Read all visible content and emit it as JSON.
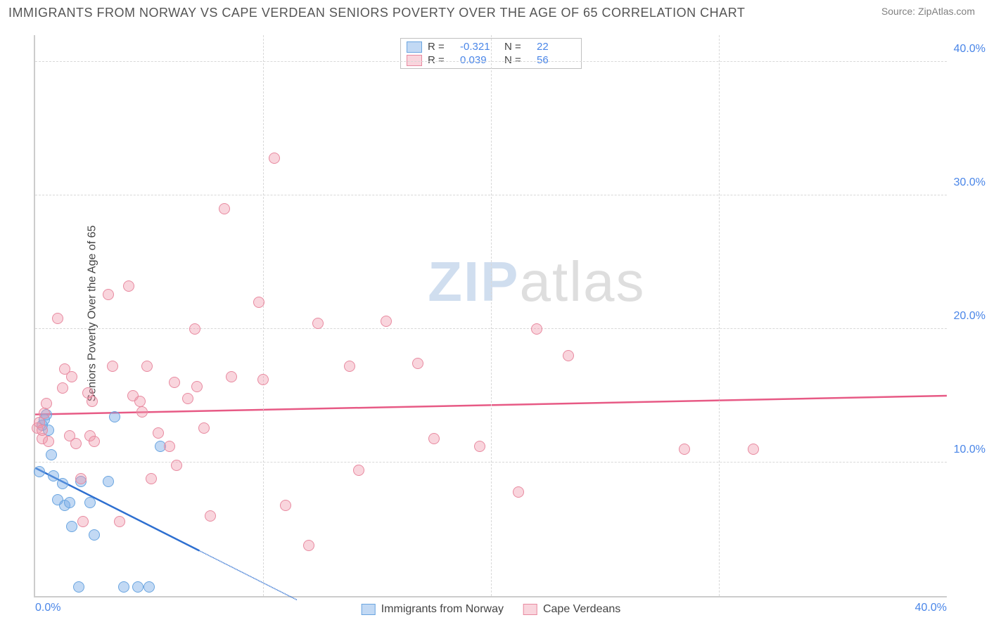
{
  "meta": {
    "title": "IMMIGRANTS FROM NORWAY VS CAPE VERDEAN SENIORS POVERTY OVER THE AGE OF 65 CORRELATION CHART",
    "source": "Source: ZipAtlas.com",
    "watermark_zip": "ZIP",
    "watermark_atlas": "atlas"
  },
  "chart": {
    "type": "scatter",
    "ylabel": "Seniors Poverty Over the Age of 65",
    "xlim": [
      0,
      40
    ],
    "ylim": [
      0,
      42
    ],
    "xtick_labels": [
      "0.0%",
      "40.0%"
    ],
    "xtick_positions": [
      0,
      40
    ],
    "ytick_labels": [
      "10.0%",
      "20.0%",
      "30.0%",
      "40.0%"
    ],
    "ytick_positions": [
      10,
      20,
      30,
      40
    ],
    "grid_x_positions": [
      10,
      20,
      30
    ],
    "grid_color": "#d8d8d8",
    "background_color": "#ffffff",
    "axis_color": "#cccccc",
    "tick_label_color": "#4a86e8",
    "marker_radius": 8,
    "series": [
      {
        "name": "Immigrants from Norway",
        "color_fill": "rgba(120,170,230,0.45)",
        "color_stroke": "#6aa5e0",
        "line_color": "#2e6fd0",
        "r": -0.321,
        "n": 22,
        "trend": {
          "x1": 0,
          "y1": 9.6,
          "x2": 7.2,
          "y2": 3.4,
          "dash_x2": 11.5,
          "dash_y2": -0.3
        },
        "points": [
          [
            0.2,
            9.3
          ],
          [
            0.3,
            12.8
          ],
          [
            0.4,
            13.2
          ],
          [
            0.5,
            13.6
          ],
          [
            0.6,
            12.4
          ],
          [
            0.7,
            10.6
          ],
          [
            0.8,
            9.0
          ],
          [
            1.0,
            7.2
          ],
          [
            1.2,
            8.4
          ],
          [
            1.3,
            6.8
          ],
          [
            1.5,
            7.0
          ],
          [
            1.6,
            5.2
          ],
          [
            1.9,
            0.7
          ],
          [
            2.0,
            8.6
          ],
          [
            2.4,
            7.0
          ],
          [
            2.6,
            4.6
          ],
          [
            3.2,
            8.6
          ],
          [
            3.5,
            13.4
          ],
          [
            3.9,
            0.7
          ],
          [
            4.5,
            0.7
          ],
          [
            5.0,
            0.7
          ],
          [
            5.5,
            11.2
          ]
        ]
      },
      {
        "name": "Cape Verdeans",
        "color_fill": "rgba(240,150,170,0.40)",
        "color_stroke": "#e88aa0",
        "line_color": "#e75a85",
        "r": 0.039,
        "n": 56,
        "trend": {
          "x1": 0,
          "y1": 13.6,
          "x2": 40,
          "y2": 15.0
        },
        "points": [
          [
            0.1,
            12.6
          ],
          [
            0.2,
            13.0
          ],
          [
            0.3,
            11.8
          ],
          [
            0.3,
            12.4
          ],
          [
            0.4,
            13.7
          ],
          [
            0.5,
            14.4
          ],
          [
            0.6,
            11.6
          ],
          [
            1.0,
            20.8
          ],
          [
            1.2,
            15.6
          ],
          [
            1.3,
            17.0
          ],
          [
            1.5,
            12.0
          ],
          [
            1.6,
            16.4
          ],
          [
            1.8,
            11.4
          ],
          [
            2.0,
            8.8
          ],
          [
            2.1,
            5.6
          ],
          [
            2.3,
            15.2
          ],
          [
            2.4,
            12.0
          ],
          [
            2.5,
            14.6
          ],
          [
            2.6,
            11.6
          ],
          [
            3.2,
            22.6
          ],
          [
            3.4,
            17.2
          ],
          [
            3.7,
            5.6
          ],
          [
            4.1,
            23.2
          ],
          [
            4.3,
            15.0
          ],
          [
            4.6,
            14.6
          ],
          [
            4.7,
            13.8
          ],
          [
            4.9,
            17.2
          ],
          [
            5.1,
            8.8
          ],
          [
            5.4,
            12.2
          ],
          [
            5.9,
            11.2
          ],
          [
            6.1,
            16.0
          ],
          [
            6.2,
            9.8
          ],
          [
            6.7,
            14.8
          ],
          [
            7.0,
            20.0
          ],
          [
            7.1,
            15.7
          ],
          [
            7.4,
            12.6
          ],
          [
            7.7,
            6.0
          ],
          [
            8.3,
            29.0
          ],
          [
            8.6,
            16.4
          ],
          [
            9.8,
            22.0
          ],
          [
            10.0,
            16.2
          ],
          [
            10.5,
            32.8
          ],
          [
            11.0,
            6.8
          ],
          [
            12.0,
            3.8
          ],
          [
            12.4,
            20.4
          ],
          [
            13.8,
            17.2
          ],
          [
            14.2,
            9.4
          ],
          [
            15.4,
            20.6
          ],
          [
            16.8,
            17.4
          ],
          [
            17.5,
            11.8
          ],
          [
            19.5,
            11.2
          ],
          [
            21.2,
            7.8
          ],
          [
            23.4,
            18.0
          ],
          [
            22.0,
            20.0
          ],
          [
            28.5,
            11.0
          ],
          [
            31.5,
            11.0
          ]
        ]
      }
    ],
    "legend_bottom": [
      {
        "label": "Immigrants from Norway",
        "fill": "rgba(120,170,230,0.45)",
        "stroke": "#6aa5e0"
      },
      {
        "label": "Cape Verdeans",
        "fill": "rgba(240,150,170,0.40)",
        "stroke": "#e88aa0"
      }
    ]
  }
}
